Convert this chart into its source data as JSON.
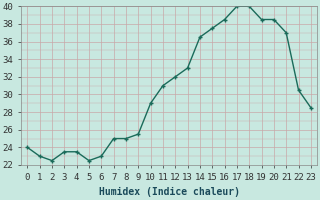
{
  "x": [
    0,
    1,
    2,
    3,
    4,
    5,
    6,
    7,
    8,
    9,
    10,
    11,
    12,
    13,
    14,
    15,
    16,
    17,
    18,
    19,
    20,
    21,
    22,
    23
  ],
  "y": [
    24,
    23,
    22.5,
    23.5,
    23.5,
    22.5,
    23,
    25,
    25,
    25.5,
    29,
    31,
    32,
    33,
    36.5,
    37.5,
    38.5,
    40,
    40,
    38.5,
    38.5,
    37,
    30.5,
    28.5
  ],
  "line_color": "#1a6b5a",
  "marker_color": "#1a6b5a",
  "bg_color": "#c8e8e0",
  "grid_color": "#c8a8a8",
  "xlabel": "Humidex (Indice chaleur)",
  "ylim": [
    22,
    40
  ],
  "xlim_min": -0.5,
  "xlim_max": 23.5,
  "yticks": [
    22,
    24,
    26,
    28,
    30,
    32,
    34,
    36,
    38,
    40
  ],
  "xticks": [
    0,
    1,
    2,
    3,
    4,
    5,
    6,
    7,
    8,
    9,
    10,
    11,
    12,
    13,
    14,
    15,
    16,
    17,
    18,
    19,
    20,
    21,
    22,
    23
  ],
  "xlabel_fontsize": 7,
  "tick_fontsize": 6.5,
  "marker_size": 2.5,
  "line_width": 1.0
}
